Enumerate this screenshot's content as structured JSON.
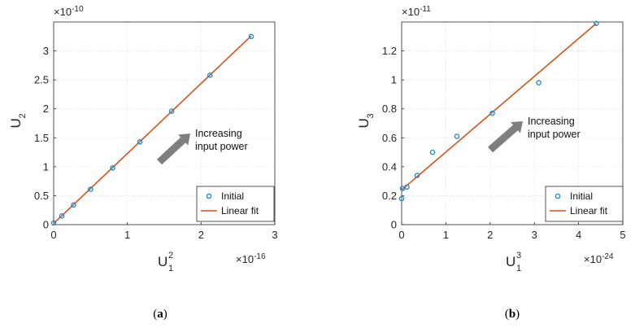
{
  "chart_data": [
    {
      "type": "scatter",
      "panel_label": "(a)",
      "xlabel_main": "U",
      "xlabel_sub": "1",
      "xlabel_sup": "2",
      "ylabel_main": "U",
      "ylabel_sub": "2",
      "x_exponent": "×10",
      "x_exponent_power": "-16",
      "y_exponent": "×10",
      "y_exponent_power": "-10",
      "xlim": [
        0,
        3
      ],
      "ylim": [
        0,
        3.5
      ],
      "xticks": [
        "0",
        "1",
        "2",
        "3"
      ],
      "yticks": [
        "0",
        "0.5",
        "1",
        "1.5",
        "2",
        "2.5",
        "3"
      ],
      "grid": true,
      "legend_position": "bottom-right",
      "series": [
        {
          "name": "Initial",
          "kind": "markers",
          "color": "#1f8fd0",
          "x": [
            0.0,
            0.11,
            0.27,
            0.5,
            0.8,
            1.17,
            1.6,
            2.12,
            2.68
          ],
          "y": [
            0.03,
            0.15,
            0.34,
            0.61,
            0.98,
            1.43,
            1.96,
            2.58,
            3.25
          ]
        },
        {
          "name": "Linear fit",
          "kind": "line",
          "color": "#d95319",
          "x": [
            0.0,
            2.68
          ],
          "y": [
            0.02,
            3.26
          ]
        }
      ],
      "annotation": {
        "line1": "Increasing",
        "line2": "input power"
      }
    },
    {
      "type": "scatter",
      "panel_label": "(b)",
      "xlabel_main": "U",
      "xlabel_sub": "1",
      "xlabel_sup": "3",
      "ylabel_main": "U",
      "ylabel_sub": "3",
      "x_exponent": "×10",
      "x_exponent_power": "-24",
      "y_exponent": "×10",
      "y_exponent_power": "-11",
      "xlim": [
        0,
        5
      ],
      "ylim": [
        0,
        1.4
      ],
      "xticks": [
        "0",
        "1",
        "2",
        "3",
        "4",
        "5"
      ],
      "yticks": [
        "0",
        "0.2",
        "0.4",
        "0.6",
        "0.8",
        "1",
        "1.2"
      ],
      "grid": true,
      "legend_position": "bottom-right",
      "series": [
        {
          "name": "Initial",
          "kind": "markers",
          "color": "#1f8fd0",
          "x": [
            0.0,
            0.02,
            0.12,
            0.35,
            0.7,
            1.25,
            2.05,
            3.1,
            4.4
          ],
          "y": [
            0.18,
            0.25,
            0.26,
            0.34,
            0.5,
            0.61,
            0.77,
            0.98,
            1.39
          ]
        },
        {
          "name": "Linear fit",
          "kind": "line",
          "color": "#d95319",
          "x": [
            0.0,
            4.4
          ],
          "y": [
            0.24,
            1.39
          ]
        }
      ],
      "annotation": {
        "line1": "Increasing",
        "line2": "input power"
      }
    }
  ]
}
